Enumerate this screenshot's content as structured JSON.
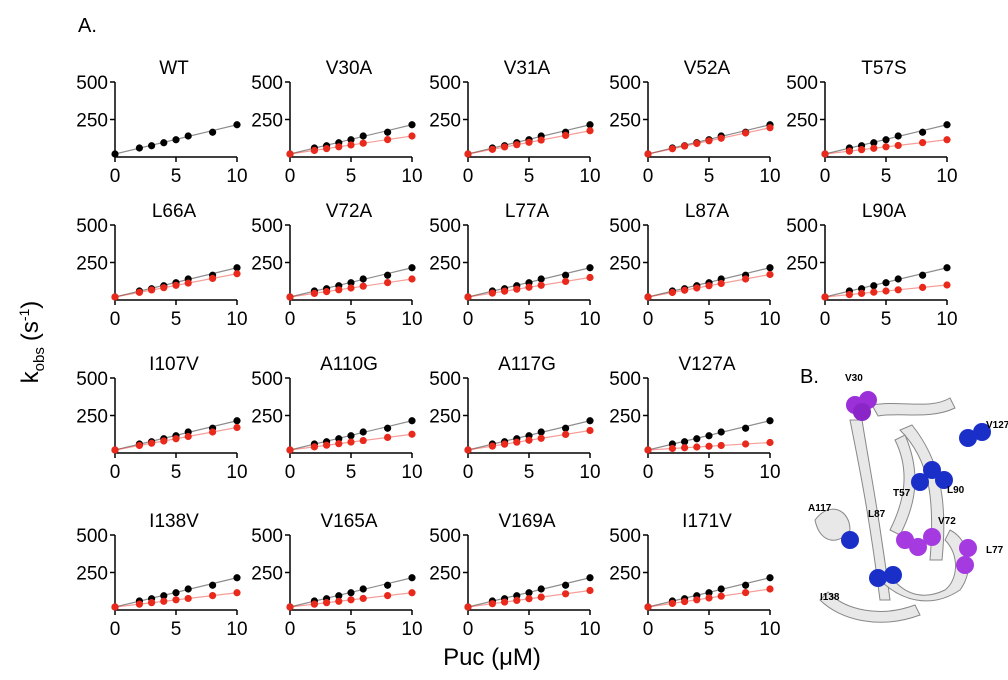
{
  "panel_a": "A.",
  "panel_b": "B.",
  "y_label": {
    "base": "k",
    "sub": "obs",
    "open": "(s",
    "sup": "-1",
    "close": ")"
  },
  "x_label": "Puc (μM)",
  "chart_data": [
    {
      "type": "scatter",
      "title": "WT",
      "x": [
        0,
        2,
        3,
        4,
        5,
        6,
        8,
        10
      ],
      "xlim": [
        0,
        10
      ],
      "xticks": [
        0,
        5,
        10
      ],
      "ylim": [
        0,
        500
      ],
      "yticks": [
        250,
        500
      ],
      "fit": true,
      "series": [
        {
          "color": "#000000",
          "values": [
            20,
            60,
            75,
            95,
            115,
            140,
            165,
            215
          ]
        }
      ]
    },
    {
      "type": "scatter",
      "title": "V30A",
      "x": [
        0,
        2,
        3,
        4,
        5,
        6,
        8,
        10
      ],
      "xlim": [
        0,
        10
      ],
      "xticks": [
        0,
        5,
        10
      ],
      "ylim": [
        0,
        500
      ],
      "yticks": [
        250,
        500
      ],
      "fit": true,
      "series": [
        {
          "color": "#000000",
          "values": [
            20,
            60,
            75,
            95,
            115,
            140,
            165,
            215
          ]
        },
        {
          "color": "#e8291c",
          "values": [
            20,
            44,
            56,
            68,
            80,
            92,
            116,
            140
          ]
        }
      ]
    },
    {
      "type": "scatter",
      "title": "V31A",
      "x": [
        0,
        2,
        3,
        4,
        5,
        6,
        8,
        10
      ],
      "xlim": [
        0,
        10
      ],
      "xticks": [
        0,
        5,
        10
      ],
      "ylim": [
        0,
        500
      ],
      "yticks": [
        250,
        500
      ],
      "fit": true,
      "series": [
        {
          "color": "#000000",
          "values": [
            20,
            60,
            75,
            95,
            115,
            140,
            165,
            215
          ]
        },
        {
          "color": "#e8291c",
          "values": [
            20,
            51,
            67,
            82,
            98,
            113,
            144,
            175
          ]
        }
      ]
    },
    {
      "type": "scatter",
      "title": "V52A",
      "x": [
        0,
        2,
        3,
        4,
        5,
        6,
        8,
        10
      ],
      "xlim": [
        0,
        10
      ],
      "xticks": [
        0,
        5,
        10
      ],
      "ylim": [
        0,
        500
      ],
      "yticks": [
        250,
        500
      ],
      "fit": true,
      "series": [
        {
          "color": "#000000",
          "values": [
            20,
            60,
            75,
            95,
            115,
            140,
            165,
            215
          ]
        },
        {
          "color": "#e8291c",
          "values": [
            20,
            55,
            73,
            90,
            108,
            125,
            160,
            195
          ]
        }
      ]
    },
    {
      "type": "scatter",
      "title": "T57S",
      "x": [
        0,
        2,
        3,
        4,
        5,
        6,
        8,
        10
      ],
      "xlim": [
        0,
        10
      ],
      "xticks": [
        0,
        5,
        10
      ],
      "ylim": [
        0,
        500
      ],
      "yticks": [
        250,
        500
      ],
      "fit": true,
      "series": [
        {
          "color": "#000000",
          "values": [
            20,
            60,
            75,
            95,
            115,
            140,
            165,
            215
          ]
        },
        {
          "color": "#e8291c",
          "values": [
            20,
            39,
            49,
            58,
            68,
            77,
            96,
            115
          ]
        }
      ]
    },
    {
      "type": "scatter",
      "title": "L66A",
      "x": [
        0,
        2,
        3,
        4,
        5,
        6,
        8,
        10
      ],
      "xlim": [
        0,
        10
      ],
      "xticks": [
        0,
        5,
        10
      ],
      "ylim": [
        0,
        500
      ],
      "yticks": [
        250,
        500
      ],
      "fit": true,
      "series": [
        {
          "color": "#000000",
          "values": [
            20,
            60,
            75,
            95,
            115,
            140,
            165,
            215
          ]
        },
        {
          "color": "#e8291c",
          "values": [
            20,
            51,
            67,
            82,
            98,
            113,
            144,
            175
          ]
        }
      ]
    },
    {
      "type": "scatter",
      "title": "V72A",
      "x": [
        0,
        2,
        3,
        4,
        5,
        6,
        8,
        10
      ],
      "xlim": [
        0,
        10
      ],
      "xticks": [
        0,
        5,
        10
      ],
      "ylim": [
        0,
        500
      ],
      "yticks": [
        250,
        500
      ],
      "fit": true,
      "series": [
        {
          "color": "#000000",
          "values": [
            20,
            60,
            75,
            95,
            115,
            140,
            165,
            215
          ]
        },
        {
          "color": "#e8291c",
          "values": [
            20,
            44,
            56,
            68,
            80,
            92,
            116,
            140
          ]
        }
      ]
    },
    {
      "type": "scatter",
      "title": "L77A",
      "x": [
        0,
        2,
        3,
        4,
        5,
        6,
        8,
        10
      ],
      "xlim": [
        0,
        10
      ],
      "xticks": [
        0,
        5,
        10
      ],
      "ylim": [
        0,
        500
      ],
      "yticks": [
        250,
        500
      ],
      "fit": true,
      "series": [
        {
          "color": "#000000",
          "values": [
            20,
            60,
            75,
            95,
            115,
            140,
            165,
            215
          ]
        },
        {
          "color": "#e8291c",
          "values": [
            20,
            46,
            59,
            72,
            85,
            98,
            124,
            150
          ]
        }
      ]
    },
    {
      "type": "scatter",
      "title": "L87A",
      "x": [
        0,
        2,
        3,
        4,
        5,
        6,
        8,
        10
      ],
      "xlim": [
        0,
        10
      ],
      "xticks": [
        0,
        5,
        10
      ],
      "ylim": [
        0,
        500
      ],
      "yticks": [
        250,
        500
      ],
      "fit": true,
      "series": [
        {
          "color": "#000000",
          "values": [
            20,
            60,
            75,
            95,
            115,
            140,
            165,
            215
          ]
        },
        {
          "color": "#e8291c",
          "values": [
            20,
            50,
            65,
            80,
            95,
            110,
            140,
            170
          ]
        }
      ]
    },
    {
      "type": "scatter",
      "title": "L90A",
      "x": [
        0,
        2,
        3,
        4,
        5,
        6,
        8,
        10
      ],
      "xlim": [
        0,
        10
      ],
      "xticks": [
        0,
        5,
        10
      ],
      "ylim": [
        0,
        500
      ],
      "yticks": [
        250,
        500
      ],
      "fit": true,
      "series": [
        {
          "color": "#000000",
          "values": [
            20,
            60,
            75,
            95,
            115,
            140,
            165,
            215
          ]
        },
        {
          "color": "#e8291c",
          "values": [
            20,
            36,
            44,
            52,
            60,
            68,
            84,
            100
          ]
        }
      ]
    },
    {
      "type": "scatter",
      "title": "I107V",
      "x": [
        0,
        2,
        3,
        4,
        5,
        6,
        8,
        10
      ],
      "xlim": [
        0,
        10
      ],
      "xticks": [
        0,
        5,
        10
      ],
      "ylim": [
        0,
        500
      ],
      "yticks": [
        250,
        500
      ],
      "fit": true,
      "series": [
        {
          "color": "#000000",
          "values": [
            20,
            60,
            75,
            95,
            115,
            140,
            165,
            215
          ]
        },
        {
          "color": "#e8291c",
          "values": [
            20,
            50,
            65,
            80,
            95,
            110,
            140,
            170
          ]
        }
      ]
    },
    {
      "type": "scatter",
      "title": "A110G",
      "x": [
        0,
        2,
        3,
        4,
        5,
        6,
        8,
        10
      ],
      "xlim": [
        0,
        10
      ],
      "xticks": [
        0,
        5,
        10
      ],
      "ylim": [
        0,
        500
      ],
      "yticks": [
        250,
        500
      ],
      "fit": true,
      "series": [
        {
          "color": "#000000",
          "values": [
            20,
            60,
            75,
            95,
            115,
            140,
            165,
            215
          ]
        },
        {
          "color": "#e8291c",
          "values": [
            20,
            41,
            52,
            62,
            73,
            83,
            104,
            125
          ]
        }
      ]
    },
    {
      "type": "scatter",
      "title": "A117G",
      "x": [
        0,
        2,
        3,
        4,
        5,
        6,
        8,
        10
      ],
      "xlim": [
        0,
        10
      ],
      "xticks": [
        0,
        5,
        10
      ],
      "ylim": [
        0,
        500
      ],
      "yticks": [
        250,
        500
      ],
      "fit": true,
      "series": [
        {
          "color": "#000000",
          "values": [
            20,
            60,
            75,
            95,
            115,
            140,
            165,
            215
          ]
        },
        {
          "color": "#e8291c",
          "values": [
            20,
            46,
            59,
            72,
            85,
            98,
            124,
            150
          ]
        }
      ]
    },
    {
      "type": "scatter",
      "title": "V127A",
      "x": [
        0,
        2,
        3,
        4,
        5,
        6,
        8,
        10
      ],
      "xlim": [
        0,
        10
      ],
      "xticks": [
        0,
        5,
        10
      ],
      "ylim": [
        0,
        500
      ],
      "yticks": [
        250,
        500
      ],
      "fit": true,
      "series": [
        {
          "color": "#000000",
          "values": [
            20,
            60,
            75,
            95,
            115,
            140,
            165,
            215
          ]
        },
        {
          "color": "#e8291c",
          "values": [
            20,
            30,
            35,
            40,
            45,
            50,
            60,
            70
          ]
        }
      ]
    },
    {
      "type": "scatter",
      "title": "I138V",
      "x": [
        0,
        2,
        3,
        4,
        5,
        6,
        8,
        10
      ],
      "xlim": [
        0,
        10
      ],
      "xticks": [
        0,
        5,
        10
      ],
      "ylim": [
        0,
        500
      ],
      "yticks": [
        250,
        500
      ],
      "fit": true,
      "series": [
        {
          "color": "#000000",
          "values": [
            20,
            60,
            75,
            95,
            115,
            140,
            165,
            215
          ]
        },
        {
          "color": "#e8291c",
          "values": [
            20,
            39,
            49,
            58,
            68,
            77,
            96,
            115
          ]
        }
      ]
    },
    {
      "type": "scatter",
      "title": "V165A",
      "x": [
        0,
        2,
        3,
        4,
        5,
        6,
        8,
        10
      ],
      "xlim": [
        0,
        10
      ],
      "xticks": [
        0,
        5,
        10
      ],
      "ylim": [
        0,
        500
      ],
      "yticks": [
        250,
        500
      ],
      "fit": true,
      "series": [
        {
          "color": "#000000",
          "values": [
            20,
            60,
            75,
            95,
            115,
            140,
            165,
            215
          ]
        },
        {
          "color": "#e8291c",
          "values": [
            20,
            39,
            49,
            58,
            68,
            77,
            96,
            115
          ]
        }
      ]
    },
    {
      "type": "scatter",
      "title": "V169A",
      "x": [
        0,
        2,
        3,
        4,
        5,
        6,
        8,
        10
      ],
      "xlim": [
        0,
        10
      ],
      "xticks": [
        0,
        5,
        10
      ],
      "ylim": [
        0,
        500
      ],
      "yticks": [
        250,
        500
      ],
      "fit": true,
      "series": [
        {
          "color": "#000000",
          "values": [
            20,
            60,
            75,
            95,
            115,
            140,
            165,
            215
          ]
        },
        {
          "color": "#e8291c",
          "values": [
            20,
            42,
            53,
            64,
            75,
            86,
            108,
            130
          ]
        }
      ]
    },
    {
      "type": "scatter",
      "title": "I171V",
      "x": [
        0,
        2,
        3,
        4,
        5,
        6,
        8,
        10
      ],
      "xlim": [
        0,
        10
      ],
      "xticks": [
        0,
        5,
        10
      ],
      "ylim": [
        0,
        500
      ],
      "yticks": [
        250,
        500
      ],
      "fit": true,
      "series": [
        {
          "color": "#000000",
          "values": [
            20,
            60,
            75,
            95,
            115,
            140,
            165,
            215
          ]
        },
        {
          "color": "#e8291c",
          "values": [
            20,
            44,
            56,
            68,
            80,
            92,
            116,
            140
          ]
        }
      ]
    }
  ],
  "structure": {
    "labels": [
      "V30",
      "V127",
      "T57",
      "L90",
      "A117",
      "L87",
      "V72",
      "L77",
      "I138"
    ]
  }
}
